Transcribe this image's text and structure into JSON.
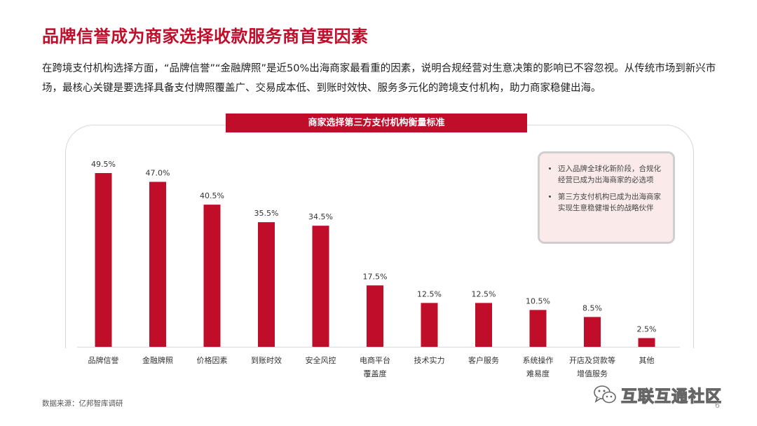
{
  "title": "品牌信誉成为商家选择收款服务商首要因素",
  "subtitle": "在跨境支付机构选择方面，“品牌信誉”“金融牌照”是近50%出海商家最看重的因素，说明合规经营对生意决策的影响已不容忽视。从传统市场到新兴市场，最核心关键是要选择具备支付牌照覆盖广、交易成本低、到账时效快、服务多元化的跨境支付机构，助力商家稳健出海。",
  "callout": {
    "items": [
      "迈入品牌全球化新阶段，合规化经营已成为出海商家的必选项",
      "第三方支付机构已成为出海商家实现生意稳健增长的战略伙伴"
    ]
  },
  "footer": {
    "source": "数据来源：亿邦智库调研",
    "page_number": "6",
    "watermark": "互联互通社区"
  },
  "chart_data": {
    "type": "bar",
    "title": "商家选择第三方支付机构衡量标准",
    "categories": [
      [
        "品牌信誉"
      ],
      [
        "金融牌照"
      ],
      [
        "价格因素"
      ],
      [
        "到账时效"
      ],
      [
        "安全风控"
      ],
      [
        "电商平台",
        "覆盖度"
      ],
      [
        "技术实力"
      ],
      [
        "客户服务"
      ],
      [
        "系统操作",
        "难易度"
      ],
      [
        "开店及贷款等",
        "增值服务"
      ],
      [
        "其他"
      ]
    ],
    "values": [
      49.5,
      47.0,
      40.5,
      35.5,
      34.5,
      17.5,
      12.5,
      12.5,
      10.5,
      8.5,
      2.5
    ],
    "value_labels": [
      "49.5%",
      "47.0%",
      "40.5%",
      "35.5%",
      "34.5%",
      "17.5%",
      "12.5%",
      "12.5%",
      "10.5%",
      "8.5%",
      "2.5%"
    ],
    "unit": "%",
    "ylim": [
      0,
      50
    ],
    "grid": false,
    "legend": "none",
    "bar_color": "#c00d2a"
  },
  "colors": {
    "accent": "#c00d2a",
    "callout_bg": "#fbeaea"
  }
}
